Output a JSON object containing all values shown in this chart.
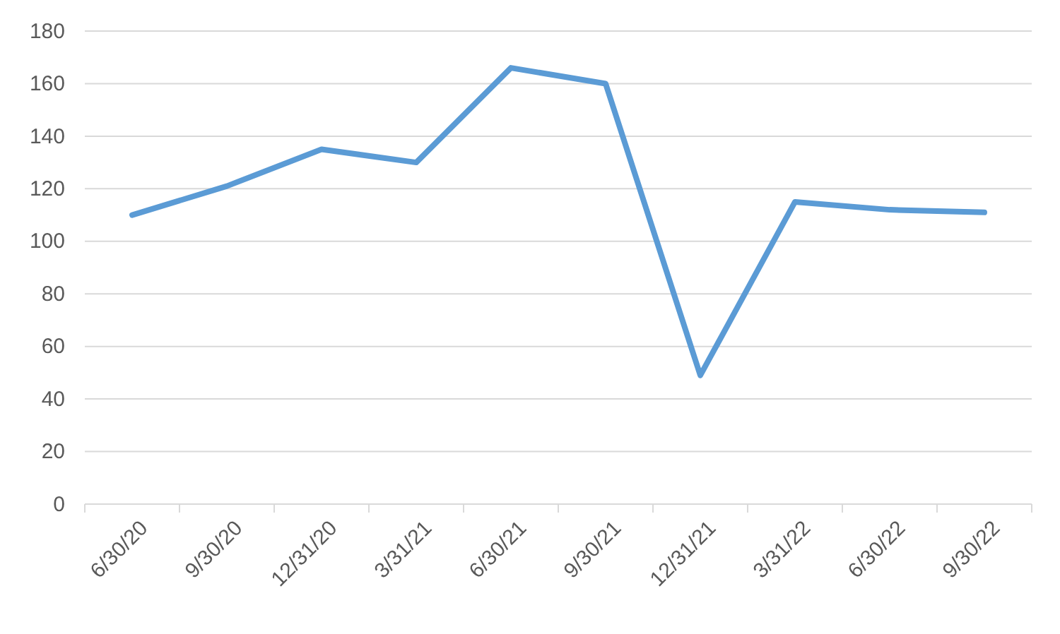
{
  "chart_data": {
    "type": "line",
    "categories": [
      "6/30/20",
      "9/30/20",
      "12/31/20",
      "3/31/21",
      "6/30/21",
      "9/30/21",
      "12/31/21",
      "3/31/22",
      "6/30/22",
      "9/30/22"
    ],
    "series": [
      {
        "color": "#5b9bd5",
        "values": [
          110,
          121,
          135,
          130,
          166,
          160,
          49,
          115,
          112,
          111
        ]
      }
    ],
    "ylim": [
      0,
      180
    ],
    "yticks": [
      0,
      20,
      40,
      60,
      80,
      100,
      120,
      140,
      160,
      180
    ],
    "grid": "y",
    "marker": "none",
    "line_style": "solid"
  }
}
